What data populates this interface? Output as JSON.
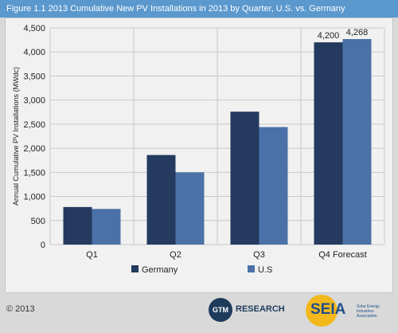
{
  "header": {
    "title": "Figure 1.1  2013 Cumulative New PV Installations in 2013 by Quarter, U.S. vs. Germany"
  },
  "footer": {
    "copyright": "© 2013",
    "gtm_logo_mark": "GTM",
    "gtm_logo_text": "RESEARCH",
    "seia_logo_text": "SEIA",
    "seia_logo_sub": "Solar Energy Industries Association"
  },
  "colors": {
    "germany": "#243a5e",
    "us": "#4a72a8",
    "grid": "#c8c8c8",
    "axis_text": "#222222"
  },
  "chart_data": {
    "type": "bar",
    "title": "",
    "xlabel": "",
    "ylabel": "Annual Cumulative PV Installations (MWdc)",
    "categories": [
      "Q1",
      "Q2",
      "Q3",
      "Q4 Forecast"
    ],
    "series": [
      {
        "name": "Germany",
        "values": [
          780,
          1860,
          2760,
          4200
        ]
      },
      {
        "name": "U.S",
        "values": [
          740,
          1500,
          2440,
          4268
        ]
      }
    ],
    "data_labels": [
      {
        "series": 0,
        "index": 3,
        "text": "4,200"
      },
      {
        "series": 1,
        "index": 3,
        "text": "4,268"
      }
    ],
    "ylim": [
      0,
      4500
    ],
    "yticks": [
      0,
      500,
      1000,
      1500,
      2000,
      2500,
      3000,
      3500,
      4000,
      4500
    ],
    "ytick_labels": [
      "0",
      "500",
      "1,000",
      "1,500",
      "2,000",
      "2,500",
      "3,000",
      "3,500",
      "4,000",
      "4,500"
    ],
    "grid": true,
    "legend": "bottom"
  }
}
